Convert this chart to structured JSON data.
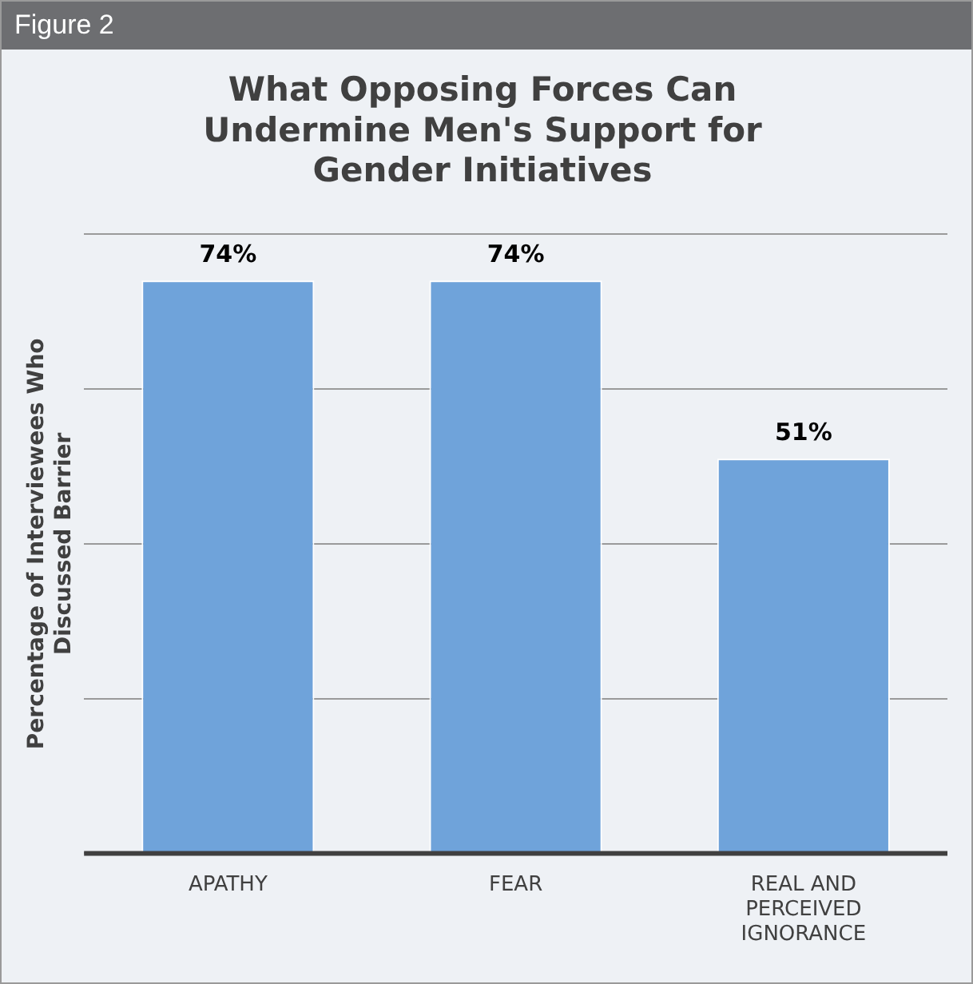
{
  "chart_data": {
    "type": "bar",
    "title": "What Opposing Forces Can Undermine Men's Support for Gender Initiatives",
    "ylabel": "Percentage of Interviewees Who Discussed Barrier",
    "annotations": [
      "Figure 2"
    ],
    "categories": [
      "APATHY",
      "FEAR",
      "REAL AND PERCEIVED IGNORANCE"
    ],
    "values": [
      74,
      74,
      51
    ],
    "value_labels": [
      "74%",
      "74%",
      "51%"
    ],
    "color": "#6fa3da",
    "ylim": [
      0,
      80
    ],
    "yticks": [
      {
        "value": 0,
        "label": null
      },
      {
        "value": 20,
        "label": null
      },
      {
        "value": 40,
        "label": null
      },
      {
        "value": 60,
        "label": null
      },
      {
        "value": 80,
        "label": null
      }
    ],
    "grid": "y",
    "tick_labels": "x",
    "legend": false
  }
}
